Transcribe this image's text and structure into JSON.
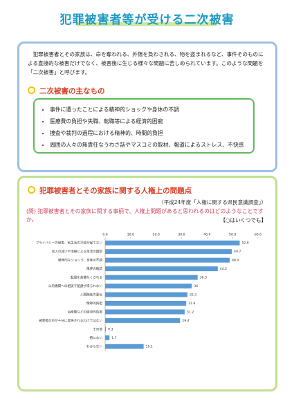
{
  "header": {
    "title": "犯罪被害者等が受ける二次被害"
  },
  "intro": {
    "text": "犯罪被害者とその家族は、命を奪われる、外傷を負わされる、物を盗まれるなど、事件そのものによる直接的な被害だけでなく、被害後に生じる様々な問題に苦しめられています。このような問題を「二次被害」と呼びます。"
  },
  "section1": {
    "heading": "二次被害の主なもの",
    "items": [
      "事件に遭ったことによる精神的ショックや身体の不調",
      "医療費の負担や失職、転職等による経済的困窮",
      "捜査や裁判の過程における精神的、時間的負担",
      "周囲の人々の無責任なうわさ話やマスコミの取材、報道によるストレス、不快感"
    ]
  },
  "section2": {
    "heading": "犯罪被害者とその家族に関する人権上の問題点",
    "source": "（平成24年度「人権に関する県民意識調査」）",
    "question": "(問) 犯罪被害者とその家族に関する事柄で、人権上問題があると思われるのはどのようなことですか。",
    "note": "【○はいくつでも】"
  },
  "chart_data": {
    "type": "bar",
    "orientation": "horizontal",
    "color": "#5b9bd5",
    "categories": [
      "プライバシーの侵害、私生活の平穏が保てない",
      "収入の減少や治療による生活の困窮",
      "精神的なショック、身体の不調",
      "風評の確認",
      "転居を余儀なくされる",
      "公的機関への相談で配慮が得られない",
      "人間関係の悪化",
      "精神的負担",
      "治療費などの経済的負担",
      "被害者の声が十分に反映されるわけではない",
      "その他",
      "特にない",
      "わからない"
    ],
    "values": [
      52.8,
      49.7,
      48.9,
      44.2,
      36.3,
      34.0,
      32.3,
      31.8,
      31.2,
      29.4,
      0.3,
      1.7,
      15.1
    ],
    "xlim": [
      0,
      60
    ],
    "xticks": [
      {
        "value": 0,
        "label": "0.0"
      },
      {
        "value": 10,
        "label": "10.0"
      },
      {
        "value": 20,
        "label": "20.0"
      },
      {
        "value": 30,
        "label": "30.0"
      },
      {
        "value": 40,
        "label": "40.0"
      },
      {
        "value": 50,
        "label": "50.0"
      },
      {
        "value": 60,
        "label": "60.0"
      }
    ],
    "grid": false
  }
}
